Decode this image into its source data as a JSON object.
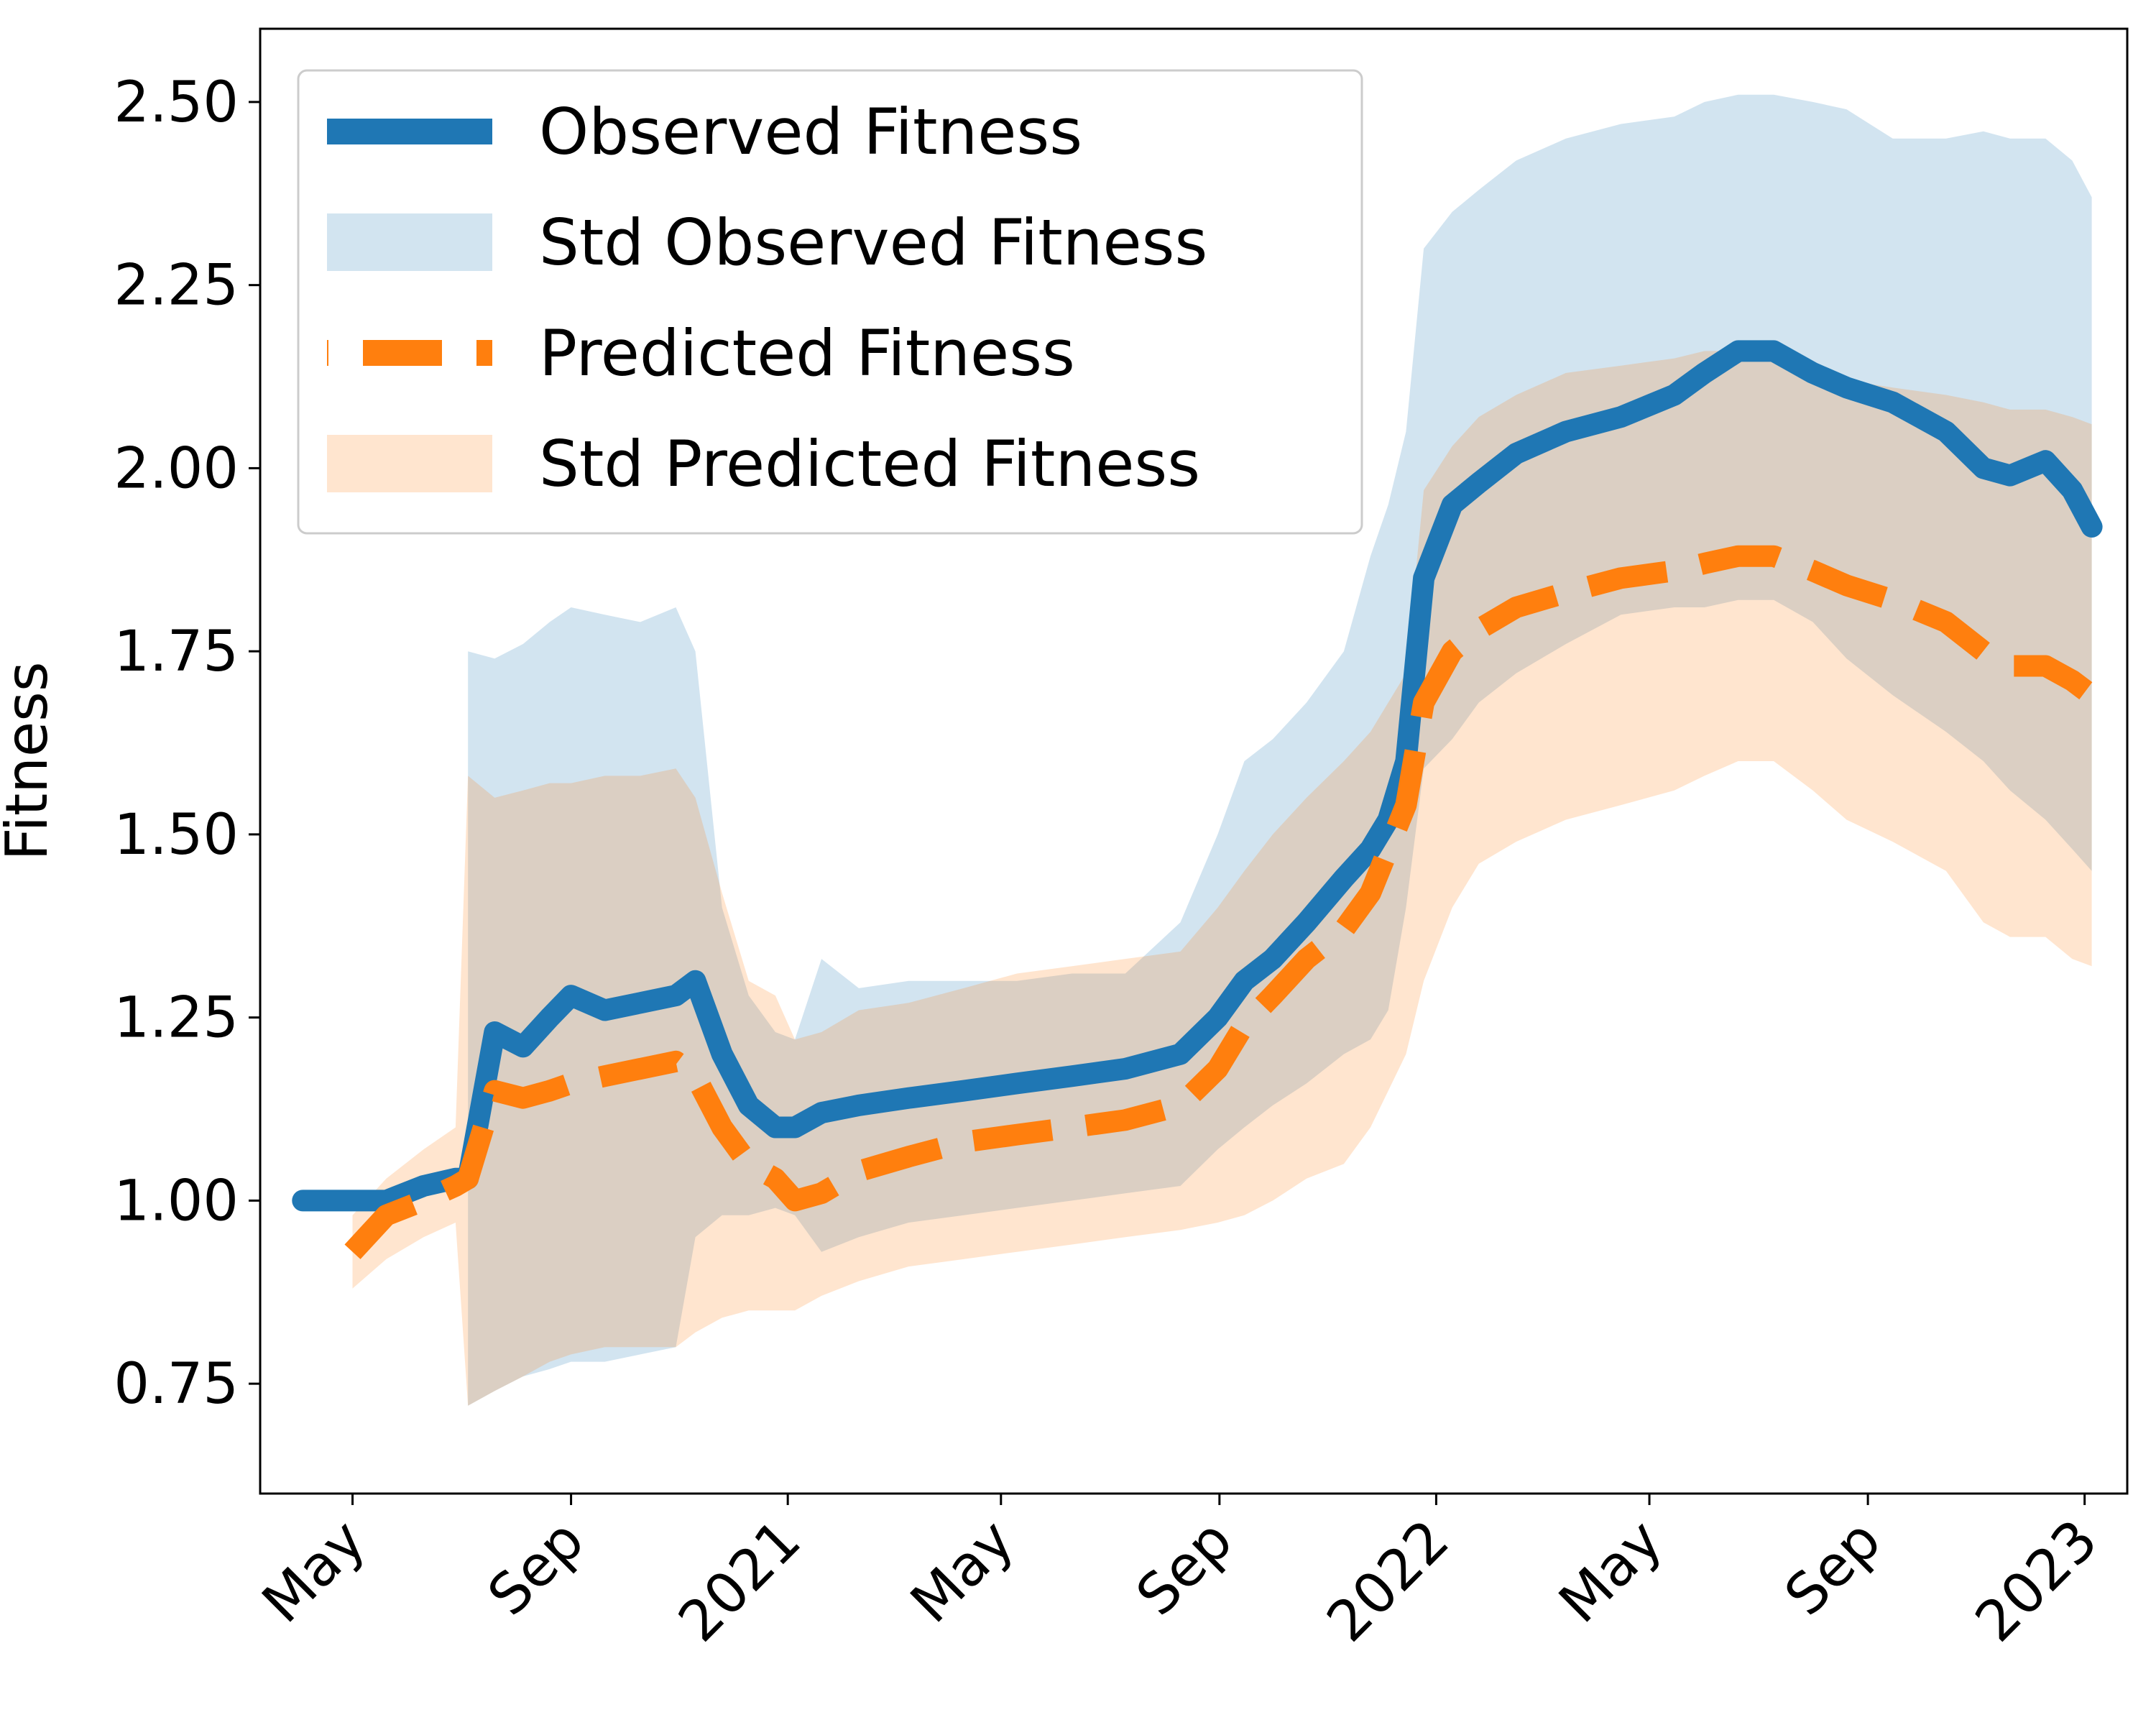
{
  "chart_data": {
    "type": "line",
    "title": "",
    "xlabel": "",
    "ylabel": "Fitness",
    "ylim": [
      0.6,
      2.6
    ],
    "xlim": [
      "2020-03-10",
      "2023-01-25"
    ],
    "grid": false,
    "legend_position": "top-left",
    "x_ticks": [
      {
        "date": "2020-05-01",
        "label": "May"
      },
      {
        "date": "2020-09-01",
        "label": "Sep"
      },
      {
        "date": "2021-01-01",
        "label": "2021"
      },
      {
        "date": "2021-05-01",
        "label": "May"
      },
      {
        "date": "2021-09-01",
        "label": "Sep"
      },
      {
        "date": "2022-01-01",
        "label": "2022"
      },
      {
        "date": "2022-05-01",
        "label": "May"
      },
      {
        "date": "2022-09-01",
        "label": "Sep"
      },
      {
        "date": "2023-01-01",
        "label": "2023"
      }
    ],
    "y_ticks": [
      {
        "value": 0.75,
        "label": "0.75"
      },
      {
        "value": 1.0,
        "label": "1.00"
      },
      {
        "value": 1.25,
        "label": "1.25"
      },
      {
        "value": 1.5,
        "label": "1.50"
      },
      {
        "value": 1.75,
        "label": "1.75"
      },
      {
        "value": 2.0,
        "label": "2.00"
      },
      {
        "value": 2.25,
        "label": "2.25"
      },
      {
        "value": 2.5,
        "label": "2.50"
      }
    ],
    "x": [
      "2020-04-03",
      "2020-05-01",
      "2020-05-20",
      "2020-06-10",
      "2020-06-28",
      "2020-07-05",
      "2020-07-20",
      "2020-08-05",
      "2020-08-20",
      "2020-09-01",
      "2020-09-20",
      "2020-10-10",
      "2020-10-30",
      "2020-11-10",
      "2020-11-25",
      "2020-12-10",
      "2020-12-25",
      "2021-01-05",
      "2021-01-20",
      "2021-02-10",
      "2021-03-10",
      "2021-04-10",
      "2021-05-10",
      "2021-06-10",
      "2021-07-10",
      "2021-08-10",
      "2021-08-31",
      "2021-09-15",
      "2021-10-01",
      "2021-10-20",
      "2021-11-10",
      "2021-11-25",
      "2021-12-05",
      "2021-12-15",
      "2021-12-25",
      "2022-01-10",
      "2022-01-25",
      "2022-02-15",
      "2022-03-15",
      "2022-04-15",
      "2022-05-15",
      "2022-06-01",
      "2022-06-20",
      "2022-07-10",
      "2022-08-01",
      "2022-08-20",
      "2022-09-15",
      "2022-10-15",
      "2022-11-05",
      "2022-11-20",
      "2022-12-10",
      "2022-12-25",
      "2023-01-05"
    ],
    "series": [
      {
        "name": "Observed Fitness",
        "color": "#1f77b4",
        "style": "solid",
        "values": [
          1.0,
          1.0,
          1.0,
          1.02,
          1.03,
          1.03,
          1.23,
          1.21,
          1.25,
          1.28,
          1.26,
          1.27,
          1.28,
          1.3,
          1.2,
          1.13,
          1.1,
          1.1,
          1.12,
          1.13,
          1.14,
          1.15,
          1.16,
          1.17,
          1.18,
          1.2,
          1.25,
          1.3,
          1.33,
          1.38,
          1.44,
          1.48,
          1.52,
          1.6,
          1.85,
          1.95,
          1.98,
          2.02,
          2.05,
          2.07,
          2.1,
          2.13,
          2.16,
          2.16,
          2.13,
          2.11,
          2.09,
          2.05,
          2.0,
          1.99,
          2.01,
          1.97,
          1.92
        ]
      },
      {
        "name": "Predicted Fitness",
        "color": "#ff7f0e",
        "style": "dashed",
        "values": [
          null,
          0.93,
          0.98,
          1.0,
          1.02,
          1.03,
          1.15,
          1.14,
          1.15,
          1.16,
          1.17,
          1.18,
          1.19,
          1.17,
          1.1,
          1.05,
          1.03,
          1.0,
          1.01,
          1.04,
          1.06,
          1.08,
          1.09,
          1.1,
          1.11,
          1.13,
          1.18,
          1.24,
          1.28,
          1.33,
          1.37,
          1.42,
          1.48,
          1.54,
          1.68,
          1.75,
          1.78,
          1.81,
          1.83,
          1.85,
          1.86,
          1.87,
          1.88,
          1.88,
          1.86,
          1.84,
          1.82,
          1.79,
          1.75,
          1.73,
          1.73,
          1.71,
          1.69
        ]
      }
    ],
    "bands": [
      {
        "name": "Std Observed Fitness",
        "color": "#1f77b4",
        "opacity": 0.2,
        "lower": [
          null,
          null,
          null,
          null,
          null,
          0.72,
          0.74,
          0.76,
          0.77,
          0.78,
          0.78,
          0.79,
          0.8,
          0.95,
          0.98,
          0.98,
          0.99,
          0.98,
          0.93,
          0.95,
          0.97,
          0.98,
          0.99,
          1.0,
          1.01,
          1.02,
          1.07,
          1.1,
          1.13,
          1.16,
          1.2,
          1.22,
          1.26,
          1.4,
          1.59,
          1.63,
          1.68,
          1.72,
          1.76,
          1.8,
          1.81,
          1.81,
          1.82,
          1.82,
          1.79,
          1.74,
          1.69,
          1.64,
          1.6,
          1.56,
          1.52,
          1.48,
          1.45
        ],
        "upper": [
          null,
          null,
          null,
          null,
          null,
          1.75,
          1.74,
          1.76,
          1.79,
          1.81,
          1.8,
          1.79,
          1.81,
          1.75,
          1.4,
          1.28,
          1.23,
          1.22,
          1.33,
          1.29,
          1.3,
          1.3,
          1.3,
          1.31,
          1.31,
          1.38,
          1.5,
          1.6,
          1.63,
          1.68,
          1.75,
          1.88,
          1.95,
          2.05,
          2.3,
          2.35,
          2.38,
          2.42,
          2.45,
          2.47,
          2.48,
          2.5,
          2.51,
          2.51,
          2.5,
          2.49,
          2.45,
          2.45,
          2.46,
          2.45,
          2.45,
          2.42,
          2.37
        ]
      },
      {
        "name": "Std Predicted Fitness",
        "color": "#ff7f0e",
        "opacity": 0.2,
        "lower": [
          null,
          0.88,
          0.92,
          0.95,
          0.97,
          0.72,
          0.74,
          0.76,
          0.78,
          0.79,
          0.8,
          0.8,
          0.8,
          0.82,
          0.84,
          0.85,
          0.85,
          0.85,
          0.87,
          0.89,
          0.91,
          0.92,
          0.93,
          0.94,
          0.95,
          0.96,
          0.97,
          0.98,
          1.0,
          1.03,
          1.05,
          1.1,
          1.15,
          1.2,
          1.3,
          1.4,
          1.46,
          1.49,
          1.52,
          1.54,
          1.56,
          1.58,
          1.6,
          1.6,
          1.56,
          1.52,
          1.49,
          1.45,
          1.38,
          1.36,
          1.36,
          1.33,
          1.32
        ],
        "upper": [
          null,
          0.98,
          1.03,
          1.07,
          1.1,
          1.58,
          1.55,
          1.56,
          1.57,
          1.57,
          1.58,
          1.58,
          1.59,
          1.55,
          1.42,
          1.3,
          1.28,
          1.22,
          1.23,
          1.26,
          1.27,
          1.29,
          1.31,
          1.32,
          1.33,
          1.34,
          1.4,
          1.45,
          1.5,
          1.55,
          1.6,
          1.64,
          1.68,
          1.72,
          1.97,
          2.03,
          2.07,
          2.1,
          2.13,
          2.14,
          2.15,
          2.16,
          2.16,
          2.16,
          2.14,
          2.12,
          2.11,
          2.1,
          2.09,
          2.08,
          2.08,
          2.07,
          2.06
        ]
      }
    ],
    "legend": [
      {
        "label": "Observed Fitness",
        "kind": "line",
        "color": "#1f77b4"
      },
      {
        "label": "Std Observed Fitness",
        "kind": "patch",
        "color": "#1f77b4"
      },
      {
        "label": "Predicted Fitness",
        "kind": "dashed",
        "color": "#ff7f0e"
      },
      {
        "label": "Std Predicted Fitness",
        "kind": "patch",
        "color": "#ff7f0e"
      }
    ]
  }
}
